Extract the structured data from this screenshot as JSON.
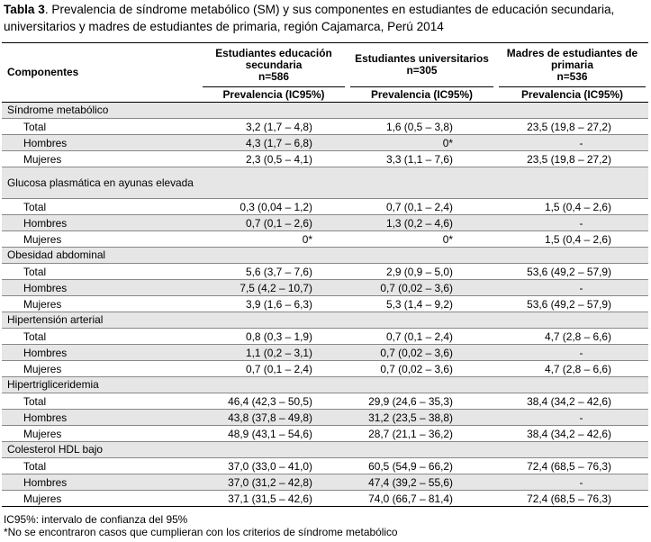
{
  "caption": {
    "label": "Tabla 3",
    "text": ". Prevalencia de síndrome metabólico (SM) y sus componentes en estudiantes de educación secundaria, universitarios y madres de estudiantes de primaria, región Cajamarca, Perú 2014"
  },
  "header": {
    "components": "Componentes",
    "col1": {
      "line1": "Estudiantes educación",
      "line2": "secundaria",
      "n": "n=586"
    },
    "col2": {
      "line1": "Estudiantes universitarios",
      "n": "n=305"
    },
    "col3": {
      "line1": "Madres de estudiantes de",
      "line2": "primaria",
      "n": "n=536"
    },
    "prev": "Prevalencia (IC95%)"
  },
  "sections": [
    {
      "name": "Síndrome metabólico",
      "rows": [
        {
          "label": "Total",
          "v1": "3,2 (1,7 – 4,8)",
          "v2": "1,6 (0,5 – 3,8)",
          "v3": "23,5 (19,8 – 27,2)"
        },
        {
          "label": "Hombres",
          "v1": "4,3 (1,7 – 6,8)",
          "v2": "0*",
          "v3": "-"
        },
        {
          "label": "Mujeres",
          "v1": "2,3 (0,5 – 4,1)",
          "v2": "3,3 (1,1 – 7,6)",
          "v3": "23,5 (19,8 – 27,2)"
        }
      ]
    },
    {
      "name": "Glucosa plasmática en ayunas elevada",
      "rows": [
        {
          "label": "Total",
          "v1": "0,3 (0,04 – 1,2)",
          "v2": "0,7 (0,1 – 2,4)",
          "v3": "1,5 (0,4 – 2,6)"
        },
        {
          "label": "Hombres",
          "v1": "0,7 (0,1 – 2,6)",
          "v2": "1,3 (0,2 – 4,6)",
          "v3": "-"
        },
        {
          "label": "Mujeres",
          "v1": "0*",
          "v2": "0*",
          "v3": "1,5 (0,4 – 2,6)"
        }
      ]
    },
    {
      "name": "Obesidad abdominal",
      "rows": [
        {
          "label": "Total",
          "v1": "5,6 (3,7 – 7,6)",
          "v2": "2,9 (0,9 – 5,0)",
          "v3": "53,6 (49,2 – 57,9)"
        },
        {
          "label": "Hombres",
          "v1": "7,5 (4,2 – 10,7)",
          "v2": "0,7 (0,02 – 3,6)",
          "v3": "-"
        },
        {
          "label": "Mujeres",
          "v1": "3,9 (1,6 – 6,3)",
          "v2": "5,3 (1,4 – 9,2)",
          "v3": "53,6 (49,2 – 57,9)"
        }
      ]
    },
    {
      "name": "Hipertensión arterial",
      "rows": [
        {
          "label": "Total",
          "v1": "0,8 (0,3 – 1,9)",
          "v2": "0,7 (0,1 – 2,4)",
          "v3": "4,7 (2,8 – 6,6)"
        },
        {
          "label": "Hombres",
          "v1": "1,1 (0,2 – 3,1)",
          "v2": "0,7 (0,02 – 3,6)",
          "v3": "-"
        },
        {
          "label": "Mujeres",
          "v1": "0,7 (0,1 – 2,4)",
          "v2": "0,7 (0,02 – 3,6)",
          "v3": "4,7 (2,8 – 6,6)"
        }
      ]
    },
    {
      "name": "Hipertrigliceridemia",
      "rows": [
        {
          "label": "Total",
          "v1": "46,4 (42,3 – 50,5)",
          "v2": "29,9 (24,6 – 35,3)",
          "v3": "38,4 (34,2 – 42,6)"
        },
        {
          "label": "Hombres",
          "v1": "43,8 (37,8 – 49,8)",
          "v2": "31,2 (23,5 – 38,8)",
          "v3": "-"
        },
        {
          "label": "Mujeres",
          "v1": "48,9 (43,1 – 54,6)",
          "v2": "28,7 (21,1 – 36,2)",
          "v3": "38,4 (34,2 – 42,6)"
        }
      ]
    },
    {
      "name": "Colesterol HDL bajo",
      "rows": [
        {
          "label": "Total",
          "v1": "37,0 (33,0 – 41,0)",
          "v2": "60,5 (54,9 – 66,2)",
          "v3": "72,4 (68,5 – 76,3)"
        },
        {
          "label": "Hombres",
          "v1": "37,0 (31,2 – 42,8)",
          "v2": "47,4 (39,2 – 55,6)",
          "v3": "-"
        },
        {
          "label": "Mujeres",
          "v1": "37,1 (31,5 – 42,6)",
          "v2": "74,0 (66,7 – 81,4)",
          "v3": "72,4 (68,5 – 76,3)"
        }
      ]
    }
  ],
  "notes": {
    "n1": "IC95%: intervalo de confianza del 95%",
    "n2": "*No se encontraron casos que cumplieran con los criterios de síndrome metabólico"
  }
}
